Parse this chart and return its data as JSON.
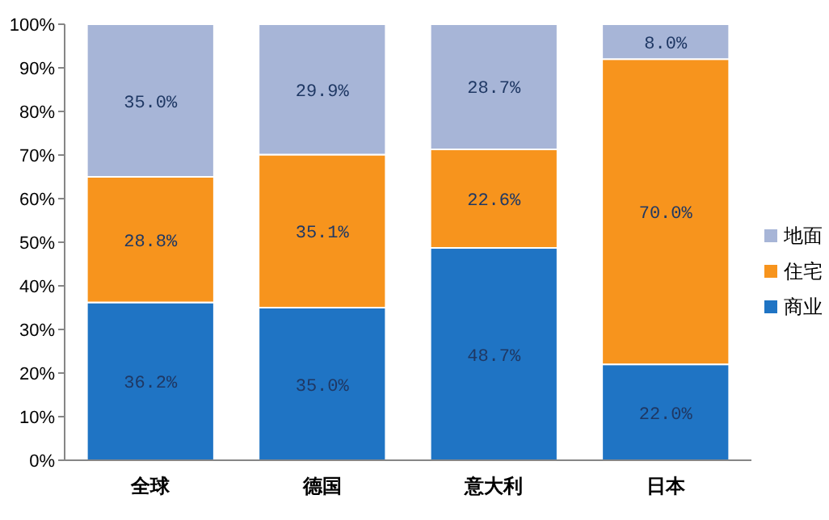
{
  "chart_data": {
    "type": "bar",
    "stacked": true,
    "categories": [
      "全球",
      "德国",
      "意大利",
      "日本"
    ],
    "series": [
      {
        "name": "商业",
        "color": "#1f74c4",
        "values": [
          36.2,
          35.0,
          48.7,
          22.0
        ],
        "value_labels": [
          "36.2%",
          "35.0%",
          "48.7%",
          "22.0%"
        ]
      },
      {
        "name": "住宅",
        "color": "#f7941d",
        "values": [
          28.8,
          35.1,
          22.6,
          70.0
        ],
        "value_labels": [
          "28.8%",
          "35.1%",
          "22.6%",
          "70.0%"
        ]
      },
      {
        "name": "地面",
        "color": "#a7b5d7",
        "values": [
          35.0,
          29.9,
          28.7,
          8.0
        ],
        "value_labels": [
          "35.0%",
          "29.9%",
          "28.7%",
          "8.0%"
        ]
      }
    ],
    "ylim": [
      0,
      100
    ],
    "yticks": [
      {
        "value": 0,
        "label": "0%"
      },
      {
        "value": 10,
        "label": "10%"
      },
      {
        "value": 20,
        "label": "20%"
      },
      {
        "value": 30,
        "label": "30%"
      },
      {
        "value": 40,
        "label": "40%"
      },
      {
        "value": 50,
        "label": "50%"
      },
      {
        "value": 60,
        "label": "60%"
      },
      {
        "value": 70,
        "label": "70%"
      },
      {
        "value": 80,
        "label": "80%"
      },
      {
        "value": 90,
        "label": "90%"
      },
      {
        "value": 100,
        "label": "100%"
      }
    ],
    "legend": "right",
    "grid": false
  }
}
